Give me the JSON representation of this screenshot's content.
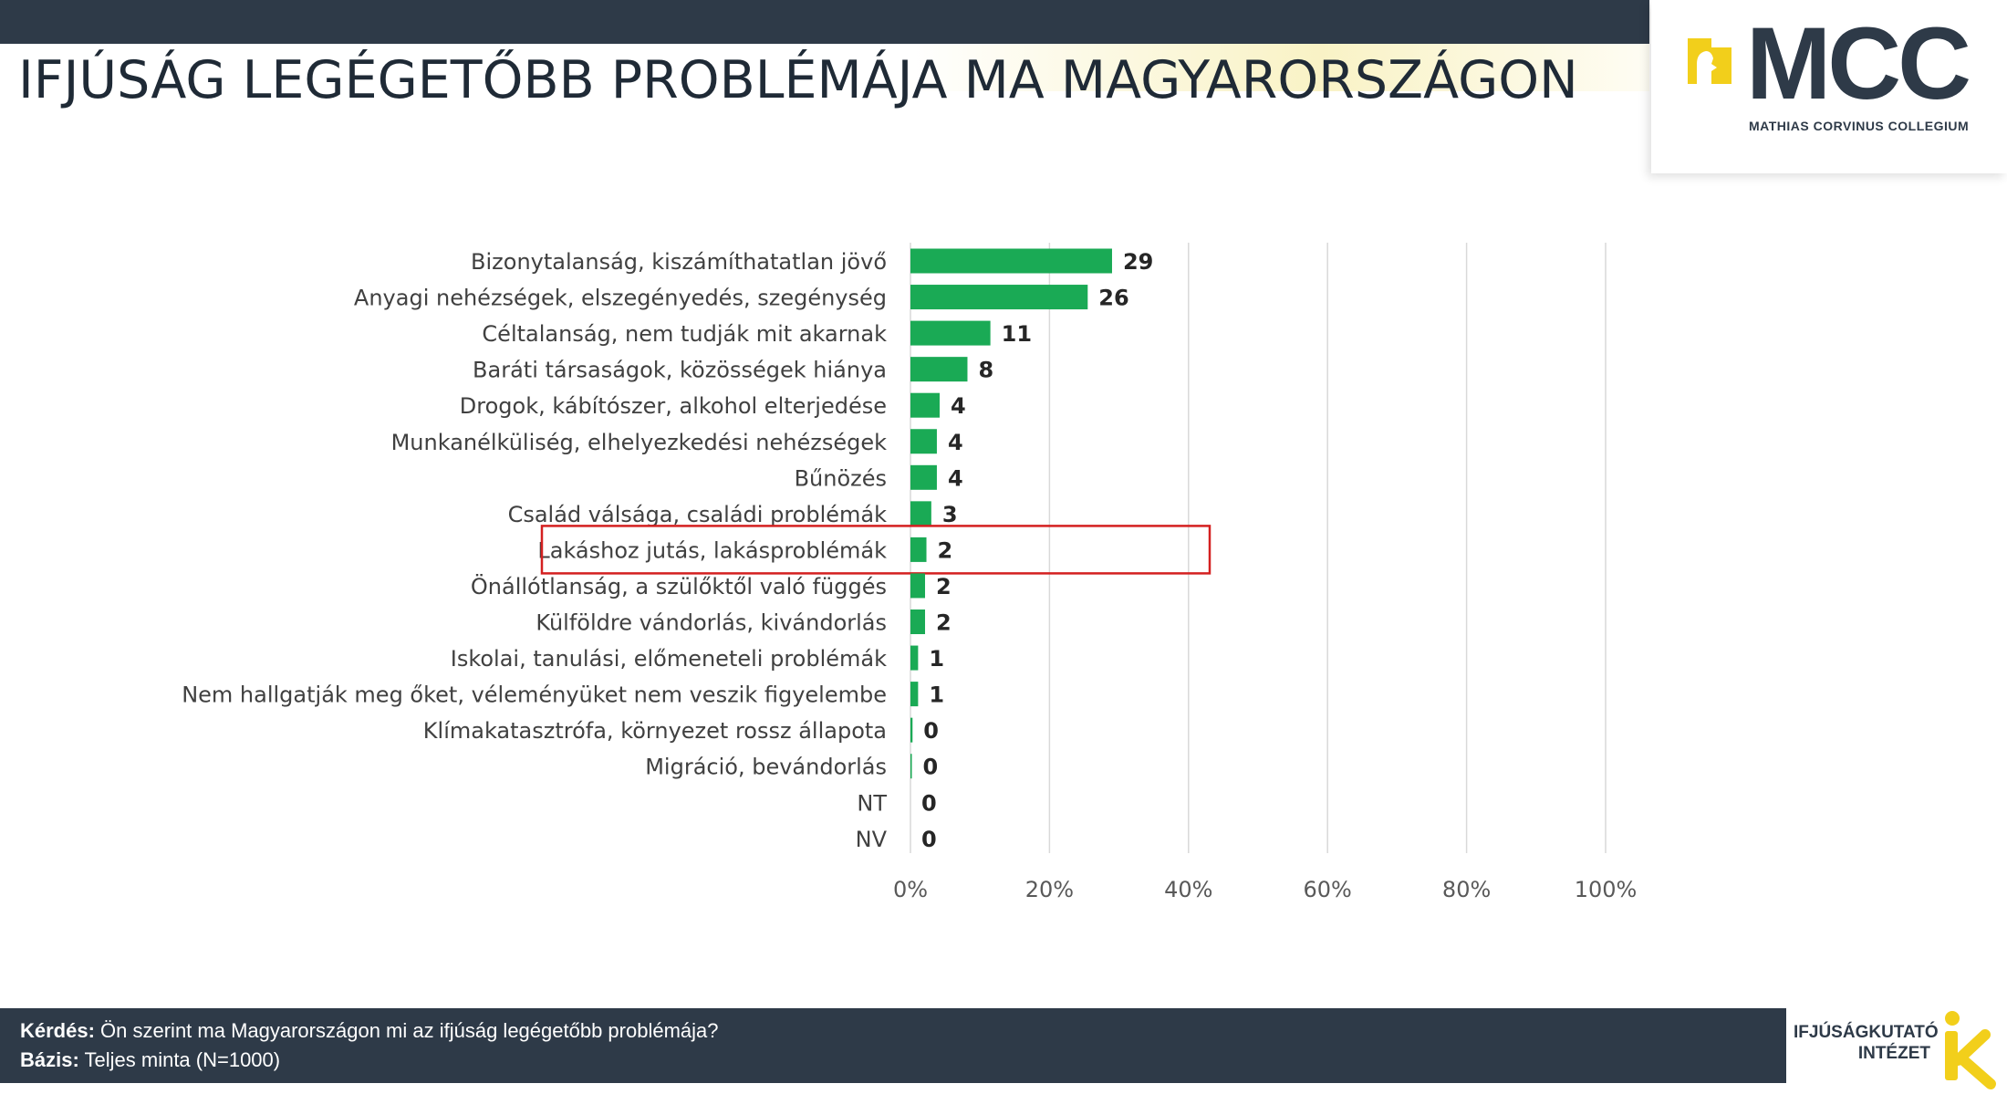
{
  "header": {
    "title": "IFJÚSÁG LEGÉGETŐBB PROBLÉMÁJA MA MAGYARORSZÁGON"
  },
  "logo": {
    "name": "MCC",
    "subtitle": "MATHIAS CORVINUS COLLEGIUM"
  },
  "footer": {
    "question_label": "Kérdés:",
    "question_text": " Ön szerint ma Magyarországon mi az ifjúság legégetőbb problémája?",
    "base_label": "Bázis:",
    "base_text": " Teljes minta (N=1000)"
  },
  "institute": {
    "line1": "IFJÚSÁGKUTATÓ",
    "line2": "INTÉZET"
  },
  "colors": {
    "bar": "#1aaa55",
    "highlight": "#d42020",
    "dark": "#2e3a48"
  },
  "chart_data": {
    "type": "bar",
    "orientation": "horizontal",
    "categories": [
      "Bizonytalanság, kiszámíthatatlan jövő",
      "Anyagi nehézségek, elszegényedés, szegénység",
      "Céltalanság, nem tudják mit akarnak",
      "Baráti társaságok, közösségek hiánya",
      "Drogok, kábítószer, alkohol elterjedése",
      "Munkanélküliség, elhelyezkedési nehézségek",
      "Bűnözés",
      "Család válsága, családi problémák",
      "Lakáshoz jutás, lakásproblémák",
      "Önállótlanság, a szülőktől való függés",
      "Külföldre vándorlás, kivándorlás",
      "Iskolai, tanulási, előmeneteli problémák",
      "Nem hallgatják meg őket, véleményüket nem veszik figyelembe",
      "Klímakatasztrófa, környezet rossz állapota",
      "Migráció, bevándorlás",
      "NT",
      "NV"
    ],
    "values": [
      29,
      26,
      11,
      8,
      4,
      4,
      4,
      3,
      2,
      2,
      2,
      1,
      1,
      0,
      0,
      0,
      0
    ],
    "bar_values": [
      29,
      25.5,
      11.5,
      8.2,
      4.2,
      3.8,
      3.8,
      3,
      2.3,
      2.1,
      2.1,
      1.1,
      1.1,
      0.3,
      0.2,
      0,
      0
    ],
    "xlim": [
      0,
      100
    ],
    "xticks": [
      "0%",
      "20%",
      "40%",
      "60%",
      "80%",
      "100%"
    ],
    "grid": true,
    "highlighted_category": "Lakáshoz jutás, lakásproblémák"
  }
}
